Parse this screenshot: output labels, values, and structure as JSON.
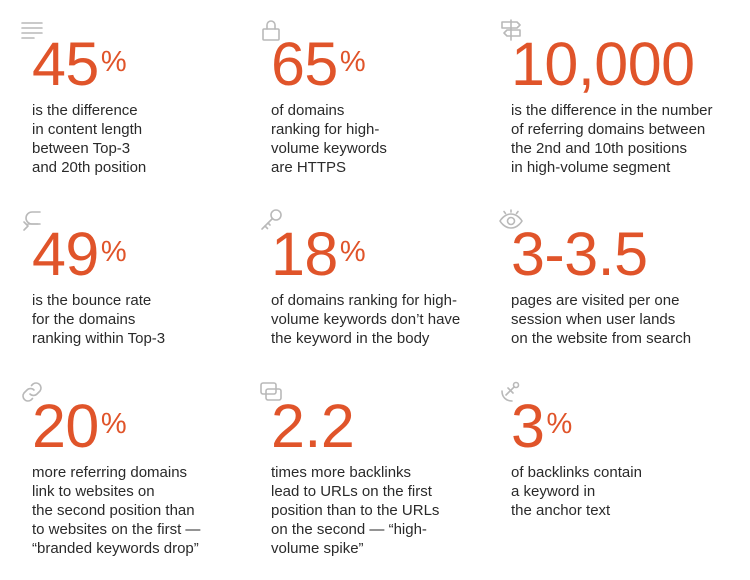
{
  "stats": [
    {
      "value": "45",
      "unit": "%",
      "icon": "text-lines-icon",
      "lines": [
        "is the difference",
        "in content length",
        "between Top-3",
        "and 20th position"
      ]
    },
    {
      "value": "65",
      "unit": "%",
      "icon": "lock-icon",
      "lines": [
        "of domains",
        "ranking for high-",
        "volume keywords",
        "are HTTPS"
      ]
    },
    {
      "value": "10,000",
      "unit": "",
      "icon": "signpost-icon",
      "lines": [
        "is the difference in the number",
        "of referring domains between",
        "the 2nd and 10th positions",
        "in high-volume segment"
      ]
    },
    {
      "value": "49",
      "unit": "%",
      "icon": "return-arrow-icon",
      "lines": [
        "is the bounce rate",
        "for the domains",
        "ranking within Top-3"
      ]
    },
    {
      "value": "18",
      "unit": "%",
      "icon": "key-icon",
      "lines": [
        "of domains ranking for high-",
        "volume keywords don’t have",
        "the keyword in the body"
      ]
    },
    {
      "value": "3-3.5",
      "unit": "",
      "icon": "eye-icon",
      "lines": [
        "pages are visited per one",
        "session when user lands",
        "on the website from search"
      ]
    },
    {
      "value": "20",
      "unit": "%",
      "icon": "link-icon",
      "lines": [
        "more referring domains",
        "link to websites on",
        "the second position than",
        "to websites on the first —",
        "“branded keywords drop”"
      ]
    },
    {
      "value": "2.2",
      "unit": "",
      "icon": "copy-windows-icon",
      "lines": [
        "times more backlinks",
        "lead to URLs on the first",
        "position than to the URLs",
        "on the second — “high-",
        "volume spike”"
      ]
    },
    {
      "value": "3",
      "unit": "%",
      "icon": "anchor-icon",
      "lines": [
        "of backlinks contain",
        "a keyword in",
        "the anchor text"
      ]
    }
  ]
}
